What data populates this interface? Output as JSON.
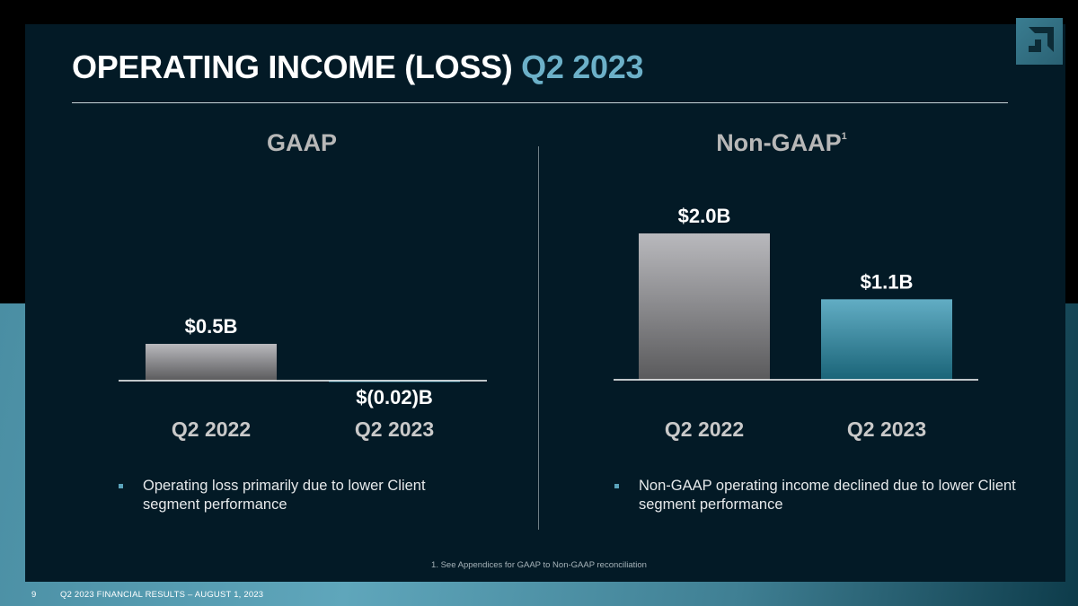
{
  "title": {
    "main": "OPERATING INCOME (LOSS)",
    "accent": "Q2 2023"
  },
  "colors": {
    "background": "#031a26",
    "accent": "#6cb0c8",
    "gray_bar": "#8e8e8e",
    "teal_bar": "#4f9fb6"
  },
  "logo": {
    "icon": "amd-arrow-logo-icon"
  },
  "chart_data": [
    {
      "type": "bar",
      "title": "GAAP",
      "categories": [
        "Q2 2022",
        "Q2 2023"
      ],
      "values": [
        0.5,
        -0.02
      ],
      "data_labels": [
        "$0.5B",
        "$(0.02)B"
      ],
      "bar_colors": [
        "gray",
        "teal"
      ],
      "unit": "$B",
      "ylim": [
        0,
        2.0
      ]
    },
    {
      "type": "bar",
      "title": "Non-GAAP",
      "title_superscript": "1",
      "categories": [
        "Q2 2022",
        "Q2 2023"
      ],
      "values": [
        2.0,
        1.1
      ],
      "data_labels": [
        "$2.0B",
        "$1.1B"
      ],
      "bar_colors": [
        "gray",
        "teal"
      ],
      "unit": "$B",
      "ylim": [
        0,
        2.0
      ]
    }
  ],
  "bullets": {
    "gaap": "Operating loss primarily due to lower Client segment performance",
    "non_gaap": "Non-GAAP operating income declined due to lower Client segment performance"
  },
  "footnote": "1. See Appendices for GAAP to Non-GAAP reconciliation",
  "footer": {
    "page": "9",
    "text": "Q2 2023 FINANCIAL RESULTS – AUGUST 1, 2023"
  }
}
